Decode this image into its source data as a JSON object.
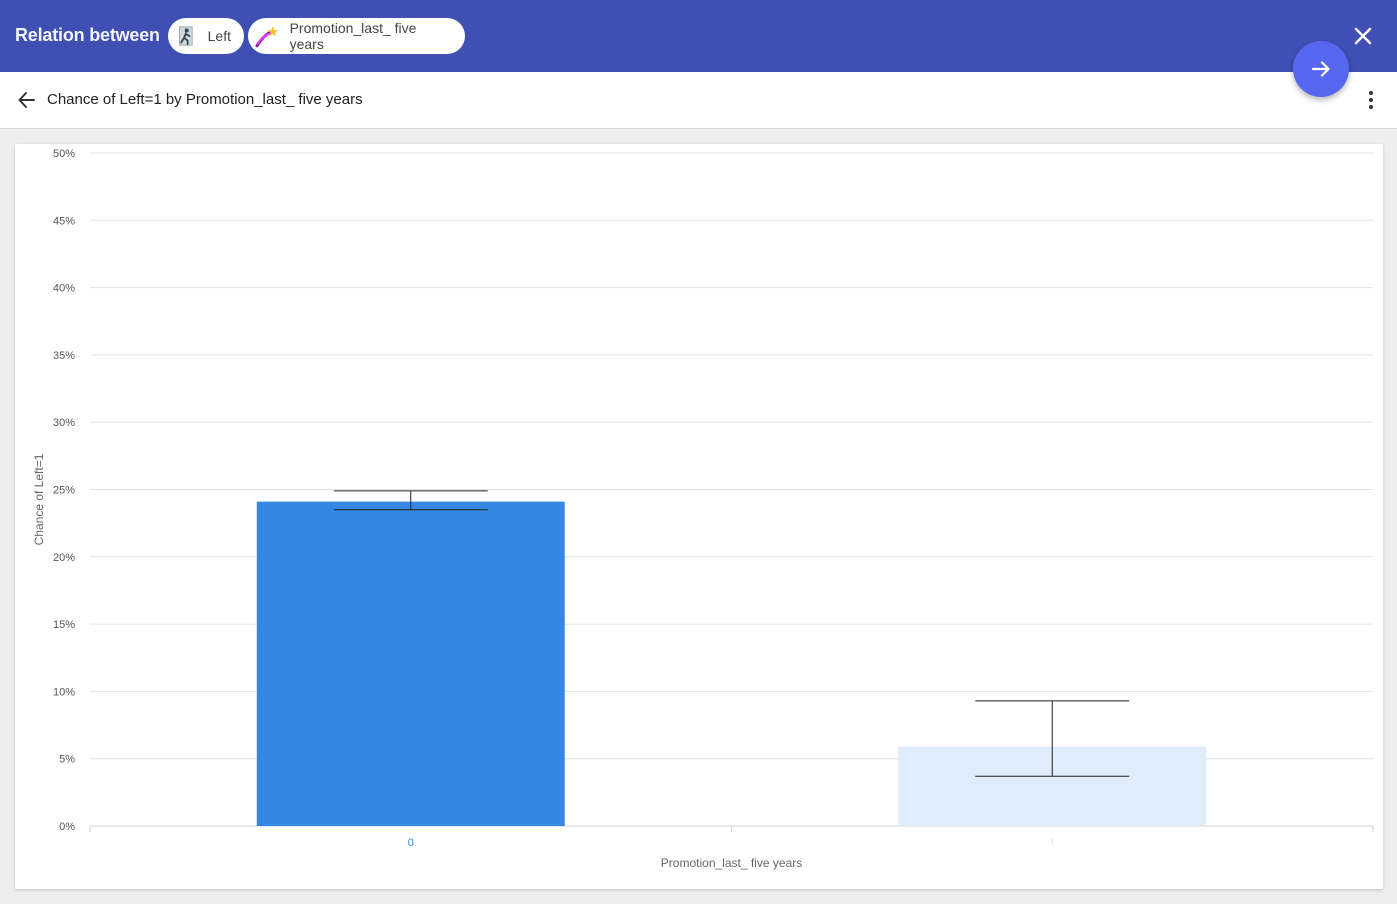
{
  "header": {
    "title": "Relation between",
    "chips": [
      {
        "label": "Left",
        "icon": "person-exit-icon"
      },
      {
        "label": "Promotion_last_ five years",
        "icon": "shooting-star-icon"
      }
    ],
    "close_icon": "close-icon"
  },
  "subheader": {
    "back_icon": "arrow-back-icon",
    "title": "Chance of Left=1 by Promotion_last_ five years",
    "more_icon": "more-vert-icon"
  },
  "fab": {
    "icon": "arrow-forward-icon",
    "color": "#5867ef"
  },
  "colors": {
    "header_bg": "#3f4fb3",
    "bar_primary": "#3487e2",
    "bar_secondary": "#dfedfb"
  },
  "chart_data": {
    "type": "bar",
    "categories": [
      "0",
      "1"
    ],
    "values": [
      24.1,
      5.9
    ],
    "error_low": [
      23.5,
      3.7
    ],
    "error_high": [
      24.9,
      9.3
    ],
    "ylim": [
      0,
      50
    ],
    "yticks": [
      "0%",
      "5%",
      "10%",
      "15%",
      "20%",
      "25%",
      "30%",
      "35%",
      "40%",
      "45%",
      "50%"
    ],
    "xlabel": "Promotion_last_ five years",
    "ylabel": "Chance of Left=1",
    "grid": true,
    "selected_category": "0"
  }
}
